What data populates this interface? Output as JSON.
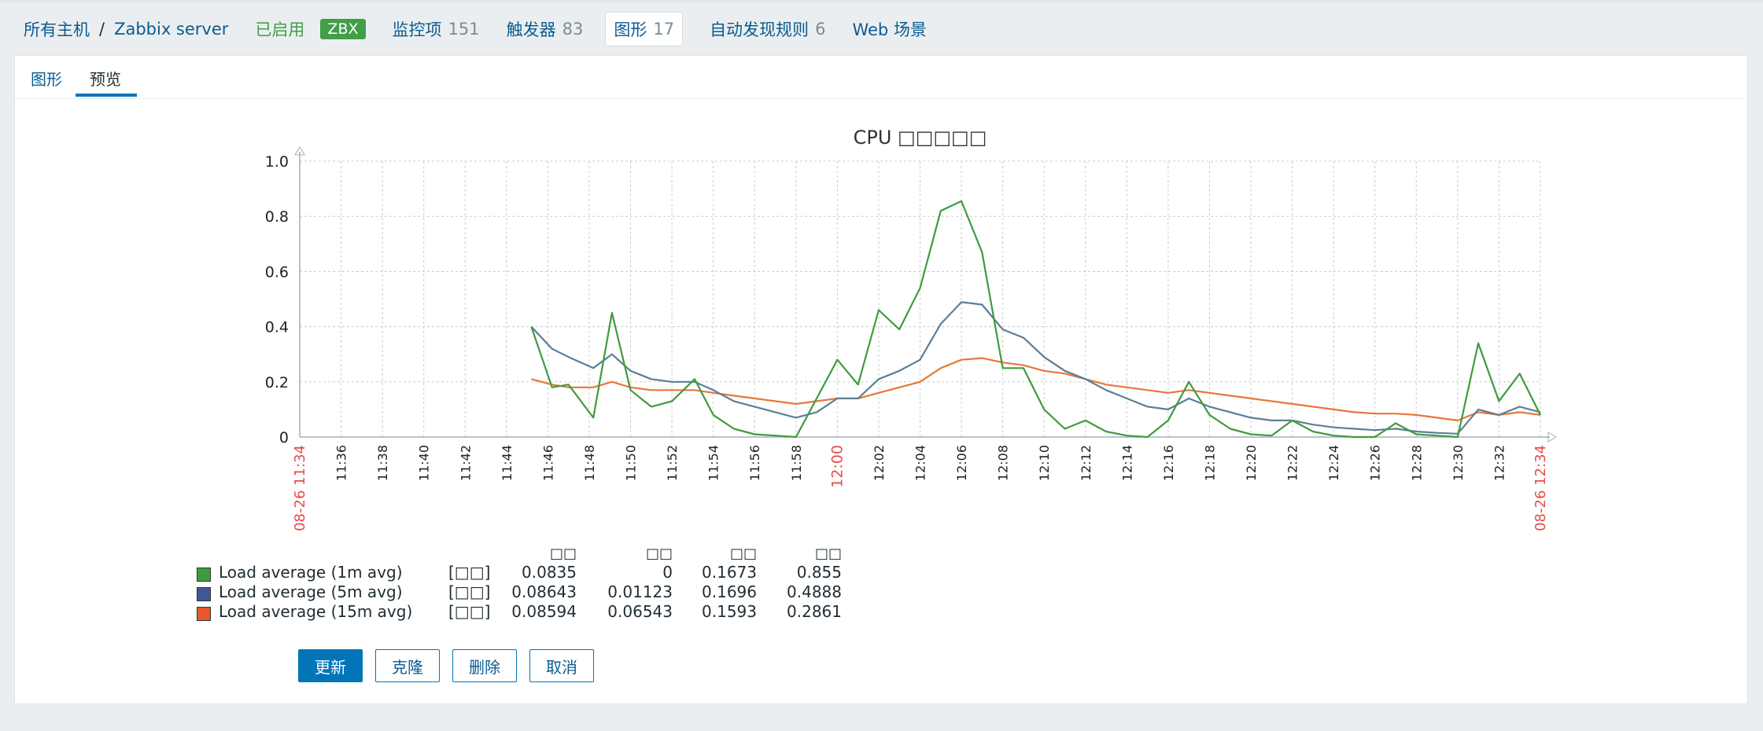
{
  "nav": {
    "breadcrumb_all_hosts": "所有主机",
    "separator": "/",
    "host_name": "Zabbix server",
    "status": "已启用",
    "zbx_badge": "ZBX",
    "items_label": "监控项",
    "items_count": "151",
    "triggers_label": "触发器",
    "triggers_count": "83",
    "graphs_label": "图形",
    "graphs_count": "17",
    "discovery_label": "自动发现规则",
    "discovery_count": "6",
    "web_label": "Web 场景"
  },
  "tabs": {
    "graph": "图形",
    "preview": "预览"
  },
  "colors": {
    "accent": "#0275b8",
    "green": "#429e47",
    "s1": "#3f9b3f",
    "s2": "#5a7f99",
    "s3": "#e8773a"
  },
  "chart_data": {
    "type": "line",
    "title": "CPU □□□□□",
    "ylim": [
      0,
      1.0
    ],
    "y_ticks": [
      "0",
      "0.2",
      "0.4",
      "0.6",
      "0.8",
      "1.0"
    ],
    "x_start_label": "08-26 11:34",
    "x_end_label": "08-26 12:34",
    "x_tick_labels": [
      "11:36",
      "11:38",
      "11:40",
      "11:42",
      "11:44",
      "11:46",
      "11:48",
      "11:50",
      "11:52",
      "11:54",
      "11:56",
      "11:58",
      "12:00",
      "12:02",
      "12:04",
      "12:06",
      "12:08",
      "12:10",
      "12:12",
      "12:14",
      "12:16",
      "12:18",
      "12:20",
      "12:22",
      "12:24",
      "12:26",
      "12:28",
      "12:30",
      "12:32"
    ],
    "x_tick_minutes": [
      2,
      4,
      6,
      8,
      10,
      12,
      14,
      16,
      18,
      20,
      22,
      24,
      26,
      28,
      30,
      32,
      34,
      36,
      38,
      40,
      42,
      44,
      46,
      48,
      50,
      52,
      54,
      56,
      58
    ],
    "highlight_tick": "12:00",
    "series": [
      {
        "name": "Load average (1m avg)",
        "color": "#3f9b3f",
        "x": [
          11.2,
          12.2,
          13.0,
          14.2,
          15.1,
          16.0,
          17.0,
          18.0,
          19.1,
          20.0,
          21.0,
          22.0,
          23.0,
          24.0,
          25.0,
          26.0,
          27.0,
          28.0,
          29.0,
          30.0,
          31.0,
          32.0,
          33.0,
          34.0,
          35.0,
          36.0,
          37.0,
          38.0,
          39.0,
          40.0,
          41.0,
          42.0,
          43.0,
          44.0,
          45.0,
          46.0,
          47.0,
          48.0,
          49.0,
          50.0,
          51.0,
          52.0,
          53.0,
          54.0,
          55.0,
          56.0,
          57.0,
          58.0,
          59.0,
          60.0
        ],
        "y": [
          0.4,
          0.18,
          0.19,
          0.07,
          0.45,
          0.17,
          0.11,
          0.13,
          0.21,
          0.08,
          0.03,
          0.01,
          0.005,
          0.0,
          0.14,
          0.28,
          0.19,
          0.46,
          0.39,
          0.54,
          0.82,
          0.855,
          0.67,
          0.25,
          0.25,
          0.1,
          0.03,
          0.06,
          0.02,
          0.005,
          0.0,
          0.06,
          0.2,
          0.08,
          0.03,
          0.01,
          0.005,
          0.06,
          0.02,
          0.005,
          0.0,
          0.0,
          0.05,
          0.01,
          0.005,
          0.0,
          0.34,
          0.13,
          0.23,
          0.08
        ]
      },
      {
        "name": "Load average (5m avg)",
        "color": "#5a7f99",
        "x": [
          11.2,
          12.2,
          13.0,
          14.2,
          15.1,
          16.0,
          17.0,
          18.0,
          19.1,
          20.0,
          21.0,
          22.0,
          23.0,
          24.0,
          25.0,
          26.0,
          27.0,
          28.0,
          29.0,
          30.0,
          31.0,
          32.0,
          33.0,
          34.0,
          35.0,
          36.0,
          37.0,
          38.0,
          39.0,
          40.0,
          41.0,
          42.0,
          43.0,
          44.0,
          45.0,
          46.0,
          47.0,
          48.0,
          49.0,
          50.0,
          51.0,
          52.0,
          53.0,
          54.0,
          55.0,
          56.0,
          57.0,
          58.0,
          59.0,
          60.0
        ],
        "y": [
          0.4,
          0.32,
          0.29,
          0.25,
          0.3,
          0.24,
          0.21,
          0.2,
          0.2,
          0.17,
          0.13,
          0.11,
          0.09,
          0.07,
          0.09,
          0.14,
          0.14,
          0.21,
          0.24,
          0.28,
          0.41,
          0.4888,
          0.48,
          0.39,
          0.36,
          0.29,
          0.24,
          0.21,
          0.17,
          0.14,
          0.11,
          0.1,
          0.14,
          0.11,
          0.09,
          0.07,
          0.06,
          0.06,
          0.045,
          0.035,
          0.03,
          0.025,
          0.03,
          0.02,
          0.015,
          0.012,
          0.1,
          0.08,
          0.11,
          0.09
        ]
      },
      {
        "name": "Load average (15m avg)",
        "color": "#e8773a",
        "x": [
          11.2,
          12.2,
          13.0,
          14.2,
          15.1,
          16.0,
          17.0,
          18.0,
          19.1,
          20.0,
          21.0,
          22.0,
          23.0,
          24.0,
          25.0,
          26.0,
          27.0,
          28.0,
          29.0,
          30.0,
          31.0,
          32.0,
          33.0,
          34.0,
          35.0,
          36.0,
          37.0,
          38.0,
          39.0,
          40.0,
          41.0,
          42.0,
          43.0,
          44.0,
          45.0,
          46.0,
          47.0,
          48.0,
          49.0,
          50.0,
          51.0,
          52.0,
          53.0,
          54.0,
          55.0,
          56.0,
          57.0,
          58.0,
          59.0,
          60.0
        ],
        "y": [
          0.21,
          0.19,
          0.18,
          0.18,
          0.2,
          0.18,
          0.17,
          0.17,
          0.17,
          0.16,
          0.15,
          0.14,
          0.13,
          0.12,
          0.13,
          0.14,
          0.14,
          0.16,
          0.18,
          0.2,
          0.25,
          0.28,
          0.2861,
          0.27,
          0.26,
          0.24,
          0.23,
          0.21,
          0.19,
          0.18,
          0.17,
          0.16,
          0.17,
          0.16,
          0.15,
          0.14,
          0.13,
          0.12,
          0.11,
          0.1,
          0.09,
          0.085,
          0.085,
          0.08,
          0.07,
          0.06,
          0.09,
          0.08,
          0.09,
          0.08
        ]
      }
    ],
    "legend": {
      "headers": [
        "□□",
        "□□",
        "□□",
        "□□"
      ],
      "tag": "[□□]",
      "rows": [
        {
          "name": "Load average (1m avg)",
          "color": "#3f9b3f",
          "values": [
            "0.0835",
            "0",
            "0.1673",
            "0.855"
          ]
        },
        {
          "name": "Load average (5m avg)",
          "color": "#405896",
          "values": [
            "0.08643",
            "0.01123",
            "0.1696",
            "0.4888"
          ]
        },
        {
          "name": "Load average (15m avg)",
          "color": "#e8582c",
          "values": [
            "0.08594",
            "0.06543",
            "0.1593",
            "0.2861"
          ]
        }
      ]
    }
  },
  "buttons": {
    "update": "更新",
    "clone": "克隆",
    "delete": "删除",
    "cancel": "取消"
  }
}
